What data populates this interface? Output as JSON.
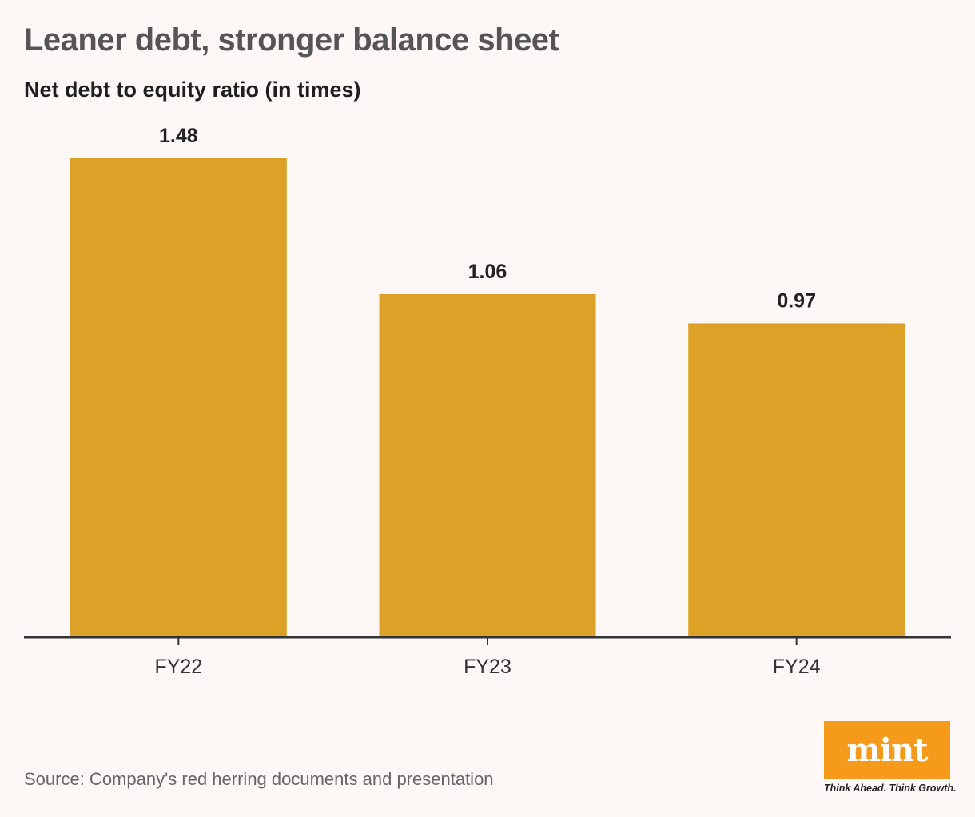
{
  "title": "Leaner debt, stronger balance sheet",
  "subtitle": "Net debt to equity ratio (in times)",
  "source": "Source: Company's red herring documents and presentation",
  "logo": {
    "text": "mint",
    "tagline": "Think Ahead. Think Growth.",
    "color": "#f59a1b"
  },
  "colors": {
    "bar": "#dda127",
    "axis": "#333333",
    "label": "#222222",
    "tick": "#333333"
  },
  "chart_data": {
    "type": "bar",
    "categories": [
      "FY22",
      "FY23",
      "FY24"
    ],
    "values": [
      1.48,
      1.06,
      0.97
    ],
    "data_labels": [
      "1.48",
      "1.06",
      "0.97"
    ],
    "title": "Leaner debt, stronger balance sheet",
    "subtitle": "Net debt to equity ratio (in times)",
    "xlabel": "",
    "ylabel": "",
    "ylim": [
      0,
      1.48
    ],
    "grid": false,
    "legend": "none"
  }
}
